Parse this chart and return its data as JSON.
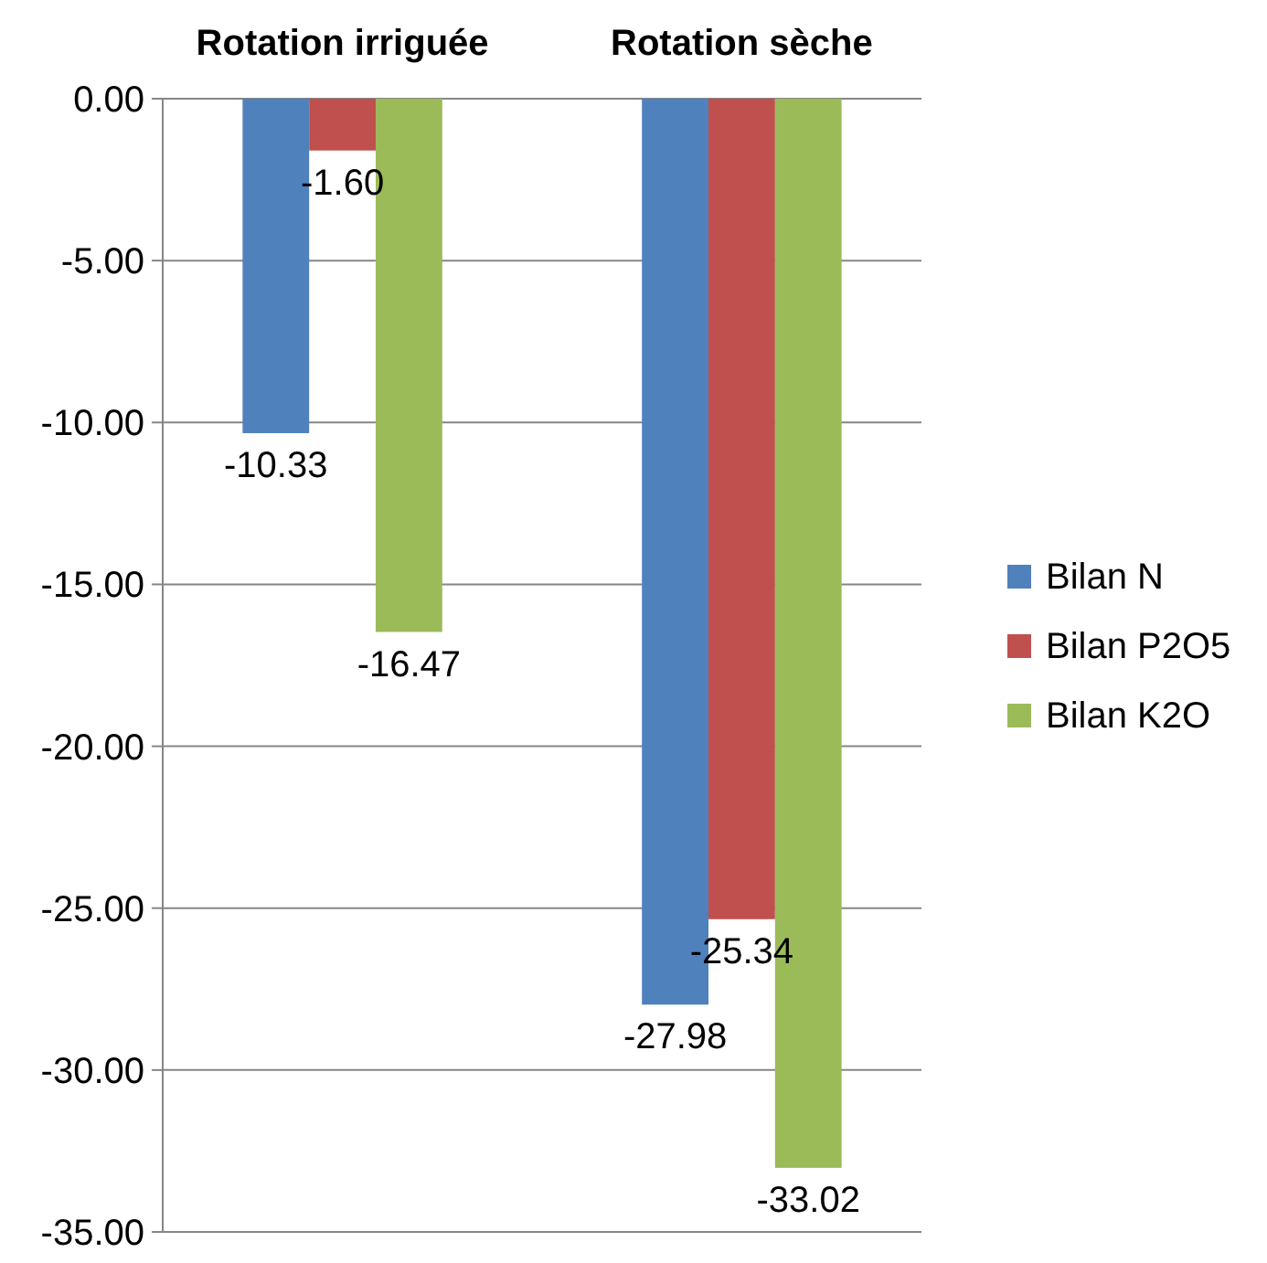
{
  "chart_data": {
    "type": "bar",
    "categories": [
      "Rotation irriguée",
      "Rotation sèche"
    ],
    "series": [
      {
        "name": "Bilan N",
        "color": "#4f81bd",
        "values": [
          -10.33,
          -27.98
        ],
        "value_labels": [
          "-10.33",
          "-27.98"
        ]
      },
      {
        "name": "Bilan P2O5",
        "color": "#c0504d",
        "values": [
          -1.6,
          -25.34
        ],
        "value_labels": [
          "-1.60",
          "-25.34"
        ]
      },
      {
        "name": "Bilan K2O",
        "color": "#9bbb59",
        "values": [
          -16.47,
          -33.02
        ],
        "value_labels": [
          "-16.47",
          "-33.02"
        ]
      }
    ],
    "ylim": [
      -35,
      0
    ],
    "yticks": [
      {
        "value": 0,
        "label": "0.00"
      },
      {
        "value": -5,
        "label": "-5.00"
      },
      {
        "value": -10,
        "label": "-10.00"
      },
      {
        "value": -15,
        "label": "-15.00"
      },
      {
        "value": -20,
        "label": "-20.00"
      },
      {
        "value": -25,
        "label": "-25.00"
      },
      {
        "value": -30,
        "label": "-30.00"
      },
      {
        "value": -35,
        "label": "-35.00"
      }
    ],
    "grid": "y",
    "legend": "right"
  }
}
